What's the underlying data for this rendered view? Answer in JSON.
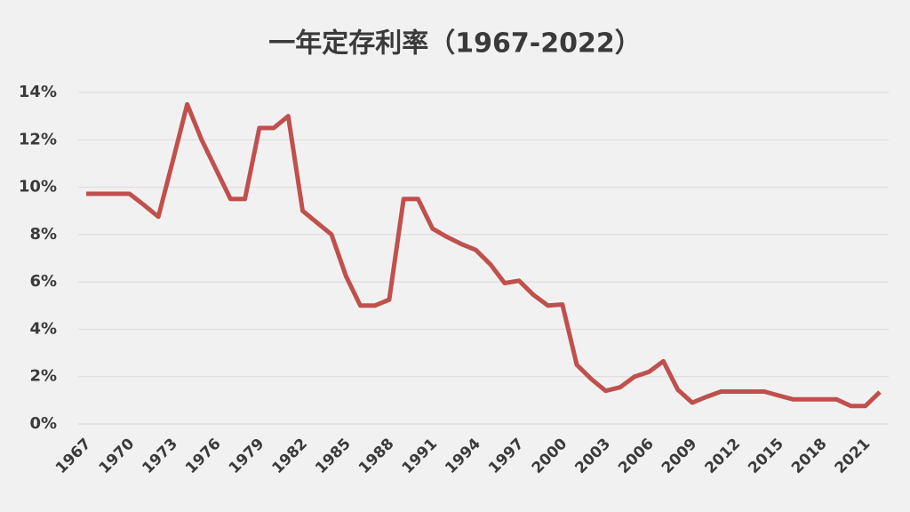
{
  "chart_data": {
    "type": "line",
    "title": "一年定存利率（1967-2022）",
    "x": [
      1967,
      1968,
      1969,
      1970,
      1971,
      1972,
      1973,
      1974,
      1975,
      1976,
      1977,
      1978,
      1979,
      1980,
      1981,
      1982,
      1983,
      1984,
      1985,
      1986,
      1987,
      1988,
      1989,
      1990,
      1991,
      1992,
      1993,
      1994,
      1995,
      1996,
      1997,
      1998,
      1999,
      2000,
      2001,
      2002,
      2003,
      2004,
      2005,
      2006,
      2007,
      2008,
      2009,
      2010,
      2011,
      2012,
      2013,
      2014,
      2015,
      2016,
      2017,
      2018,
      2019,
      2020,
      2021,
      2022
    ],
    "series": [
      {
        "color": "#c0504d",
        "values": [
          9.72,
          9.72,
          9.72,
          9.72,
          9.25,
          8.75,
          11.1,
          13.5,
          12.0,
          10.75,
          9.5,
          9.5,
          12.5,
          12.5,
          13.0,
          9.0,
          8.5,
          8.0,
          6.25,
          5.0,
          5.0,
          5.25,
          9.5,
          9.5,
          8.25,
          7.9,
          7.6,
          7.35,
          6.75,
          5.95,
          6.05,
          5.45,
          5.0,
          5.05,
          2.5,
          1.9,
          1.4,
          1.55,
          2.0,
          2.2,
          2.65,
          1.45,
          0.9,
          1.15,
          1.37,
          1.37,
          1.37,
          1.37,
          1.2,
          1.04,
          1.04,
          1.04,
          1.04,
          0.76,
          0.76,
          1.35
        ]
      }
    ],
    "xlim": [
      1967,
      2022
    ],
    "xticks": [
      1967,
      1970,
      1973,
      1976,
      1979,
      1982,
      1985,
      1988,
      1991,
      1994,
      1997,
      2000,
      2003,
      2006,
      2009,
      2012,
      2015,
      2018,
      2021
    ],
    "ylim": [
      0,
      14
    ],
    "yticks": [
      {
        "value": 0,
        "label": "0%"
      },
      {
        "value": 2,
        "label": "2%"
      },
      {
        "value": 4,
        "label": "4%"
      },
      {
        "value": 6,
        "label": "6%"
      },
      {
        "value": 8,
        "label": "8%"
      },
      {
        "value": 10,
        "label": "10%"
      },
      {
        "value": 12,
        "label": "12%"
      },
      {
        "value": 14,
        "label": "14%"
      }
    ],
    "grid": true
  }
}
